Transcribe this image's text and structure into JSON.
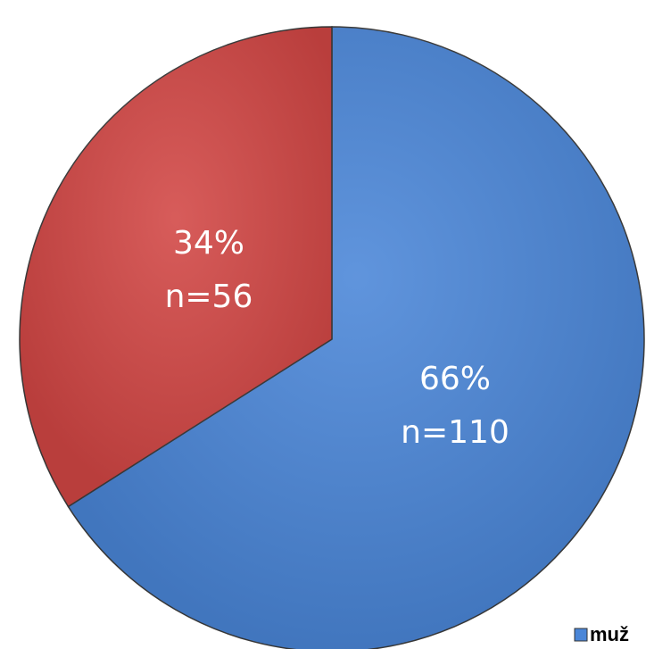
{
  "chart_data": {
    "type": "pie",
    "categories": [
      "muž",
      null
    ],
    "values": [
      66,
      34
    ],
    "value_labels": [
      "66%",
      "34%"
    ],
    "counts": [
      110,
      56
    ],
    "count_labels": [
      "n=110",
      "n=56"
    ],
    "colors": [
      "#4a86d8",
      "#d24644"
    ],
    "legend": "bottom-right"
  }
}
